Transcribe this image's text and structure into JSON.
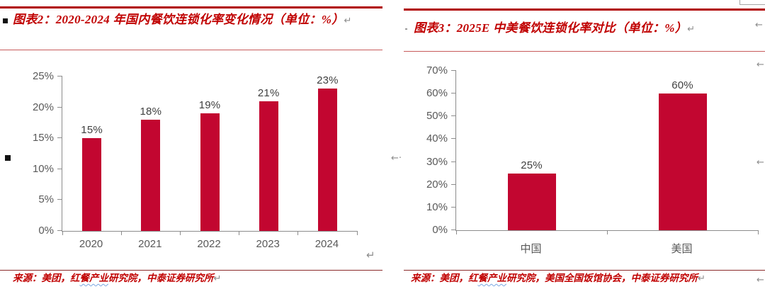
{
  "colors": {
    "bar_crimson": "#C20630",
    "title_red": "#C00000",
    "source_red": "#C00000",
    "rule_thick_red": "#B00000",
    "rule_thin_red": "#C75B5B",
    "rule_source_maroon": "#8B2A2A",
    "axis_gray": "#8C8C8C",
    "tick_label_gray": "#595959",
    "value_label_gray": "#404040",
    "squiggle_blue": "#7BA7E1",
    "format_mark_gray": "#8C8C8C"
  },
  "marks": {
    "line_break": "↵",
    "arrow": "←",
    "arrow_dot": "←·"
  },
  "panels": {
    "left": {
      "title": "图表2：2020-2024 年国内餐饮连锁化率变化情况（单位：%）",
      "source_prefix": "来源：美团，红",
      "source_underlined": "餐产业",
      "source_suffix": "研究院，中泰证券研究所"
    },
    "right": {
      "title": "图表3：2025E 中美餐饮连锁化率对比（单位：%）",
      "source_prefix": "来源：美团，红",
      "source_underlined": "餐产业",
      "source_suffix": "研究院，美国全国饭馆协会，中泰证券研究所"
    }
  },
  "chart_data": [
    {
      "type": "bar",
      "title": "2020-2024 年国内餐饮连锁化率变化情况",
      "unit": "%",
      "categories": [
        "2020",
        "2021",
        "2022",
        "2023",
        "2024"
      ],
      "values": [
        15,
        18,
        19,
        21,
        23
      ],
      "data_labels": [
        "15%",
        "18%",
        "19%",
        "21%",
        "23%"
      ],
      "ylim": [
        0,
        25
      ],
      "ytick_step": 5,
      "ytick_labels": [
        "0%",
        "5%",
        "10%",
        "15%",
        "20%",
        "25%"
      ],
      "bar_color": "#C20630",
      "grid": false,
      "legend": false
    },
    {
      "type": "bar",
      "title": "2025E 中美餐饮连锁化率对比",
      "unit": "%",
      "categories": [
        "中国",
        "美国"
      ],
      "values": [
        25,
        60
      ],
      "data_labels": [
        "25%",
        "60%"
      ],
      "ylim": [
        0,
        70
      ],
      "ytick_step": 10,
      "ytick_labels": [
        "0%",
        "10%",
        "20%",
        "30%",
        "40%",
        "50%",
        "60%",
        "70%"
      ],
      "bar_color": "#C20630",
      "grid": false,
      "legend": false
    }
  ]
}
